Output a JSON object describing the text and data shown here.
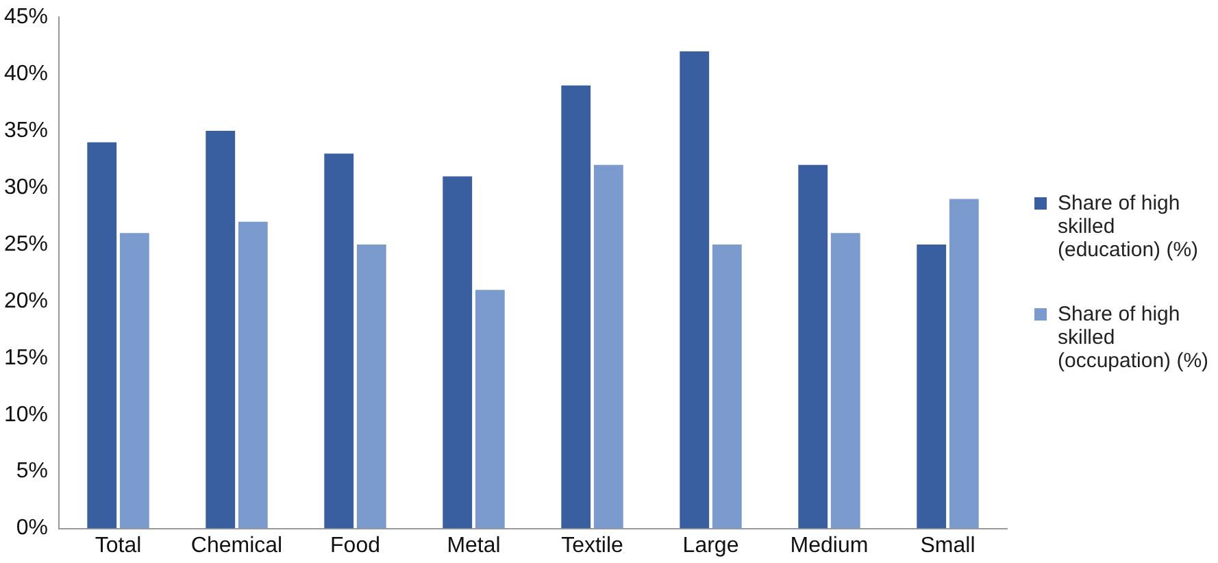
{
  "chart_data": {
    "type": "bar",
    "categories": [
      "Total",
      "Chemical",
      "Food",
      "Metal",
      "Textile",
      "Large",
      "Medium",
      "Small"
    ],
    "series": [
      {
        "name": "Share of high skilled (education) (%)",
        "color": "#3a5fa0",
        "values": [
          34,
          35,
          33,
          31,
          39,
          42,
          32,
          25
        ]
      },
      {
        "name": "Share of high skilled (occupation) (%)",
        "color": "#7b9bcf",
        "values": [
          26,
          27,
          25,
          21,
          32,
          25,
          26,
          29
        ]
      }
    ],
    "ylim": [
      0,
      45
    ],
    "yticks": [
      {
        "value": 0,
        "label": "0%"
      },
      {
        "value": 5,
        "label": "5%"
      },
      {
        "value": 10,
        "label": "10%"
      },
      {
        "value": 15,
        "label": "15%"
      },
      {
        "value": 20,
        "label": "20%"
      },
      {
        "value": 25,
        "label": "25%"
      },
      {
        "value": 30,
        "label": "30%"
      },
      {
        "value": 35,
        "label": "35%"
      },
      {
        "value": 40,
        "label": "40%"
      },
      {
        "value": 45,
        "label": "45%"
      }
    ],
    "grid": false,
    "legend": "right"
  }
}
